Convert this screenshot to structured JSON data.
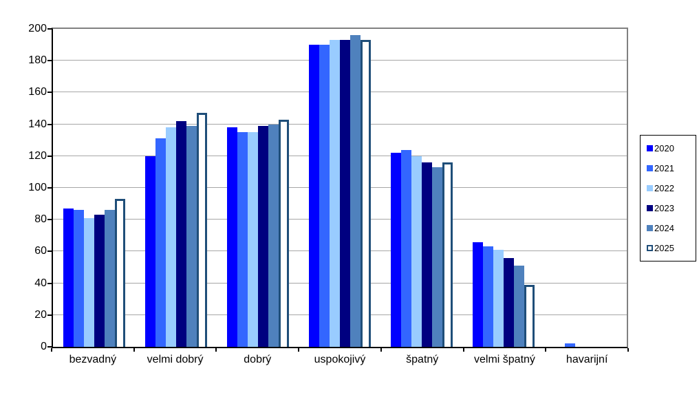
{
  "chart_data": {
    "type": "bar",
    "title": "",
    "categories": [
      "bezvadný",
      "velmi dobrý",
      "dobrý",
      "uspokojivý",
      "špatný",
      "velmi špatný",
      "havarijní"
    ],
    "series": [
      {
        "name": "2020",
        "color": "#0000FF",
        "values": [
          87,
          120,
          138,
          190,
          122,
          66,
          0
        ]
      },
      {
        "name": "2021",
        "color": "#3366FF",
        "values": [
          86,
          131,
          135,
          190,
          124,
          63,
          2
        ]
      },
      {
        "name": "2022",
        "color": "#99CCFF",
        "values": [
          81,
          138,
          135,
          193,
          120,
          61,
          0
        ]
      },
      {
        "name": "2023",
        "color": "#000080",
        "values": [
          83,
          142,
          139,
          193,
          116,
          56,
          0
        ]
      },
      {
        "name": "2024",
        "color": "#4F81BD",
        "values": [
          86,
          139,
          140,
          196,
          113,
          51,
          0
        ]
      },
      {
        "name": "2025",
        "color": "#FFFFFF",
        "border_color": "#1F4E79",
        "outlined": true,
        "values": [
          93,
          147,
          143,
          193,
          116,
          39,
          0
        ]
      }
    ],
    "xlabel": "",
    "ylabel": "",
    "ylim": [
      0,
      200
    ],
    "yticks": [
      0,
      20,
      40,
      60,
      80,
      100,
      120,
      140,
      160,
      180,
      200
    ],
    "grid": true,
    "legend_position": "right",
    "colors": {
      "gridline": "#A6A6A6",
      "axis": "#000000",
      "plot_border": "#808080",
      "background": "#FFFFFF"
    }
  }
}
